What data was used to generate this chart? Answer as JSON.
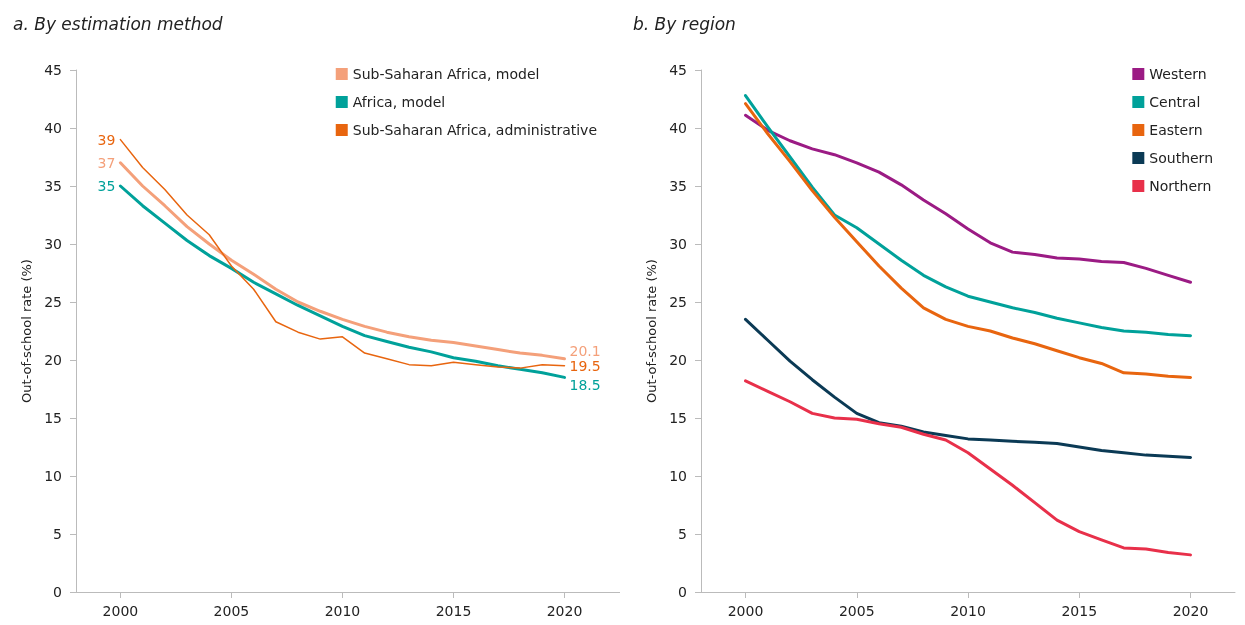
{
  "chart_data": [
    {
      "type": "line",
      "title": "a. By estimation method",
      "ylabel": "Out-of-school rate (%)",
      "x": [
        2000,
        2001,
        2002,
        2003,
        2004,
        2005,
        2006,
        2007,
        2008,
        2009,
        2010,
        2011,
        2012,
        2013,
        2014,
        2015,
        2016,
        2017,
        2018,
        2019,
        2020
      ],
      "xlim": [
        1998,
        2022.5
      ],
      "xticks": [
        2000,
        2005,
        2010,
        2015,
        2020
      ],
      "ylim": [
        0,
        45
      ],
      "yticks": [
        0,
        5,
        10,
        15,
        20,
        25,
        30,
        35,
        40,
        45
      ],
      "grid": false,
      "legend": "top right",
      "marker": "none",
      "line_style": "solid",
      "series": [
        {
          "name": "Sub-Saharan Africa, model",
          "color": "#f4a07a",
          "values": [
            37,
            35.0,
            33.3,
            31.5,
            30.0,
            28.6,
            27.4,
            26.1,
            25.0,
            24.2,
            23.5,
            22.9,
            22.4,
            22.0,
            21.7,
            21.5,
            21.2,
            20.9,
            20.6,
            20.4,
            20.1
          ],
          "value_labels": [
            "37",
            null,
            null,
            null,
            null,
            null,
            null,
            null,
            null,
            null,
            null,
            null,
            null,
            null,
            null,
            null,
            null,
            null,
            null,
            null,
            "20.1"
          ]
        },
        {
          "name": "Africa, model",
          "color": "#00a19a",
          "values": [
            35,
            33.3,
            31.8,
            30.3,
            29.0,
            27.9,
            26.7,
            25.7,
            24.7,
            23.8,
            22.9,
            22.1,
            21.6,
            21.1,
            20.7,
            20.2,
            19.9,
            19.5,
            19.2,
            18.9,
            18.5
          ],
          "value_labels": [
            "35",
            null,
            null,
            null,
            null,
            null,
            null,
            null,
            null,
            null,
            null,
            null,
            null,
            null,
            null,
            null,
            null,
            null,
            null,
            null,
            "18.5"
          ]
        },
        {
          "name": "Sub-Saharan Africa, administrative",
          "color": "#e8650f",
          "values": [
            39,
            36.6,
            34.7,
            32.5,
            30.8,
            28.1,
            26.1,
            23.3,
            22.4,
            21.8,
            22.0,
            20.6,
            20.1,
            19.6,
            19.5,
            19.8,
            19.6,
            19.4,
            19.3,
            19.6,
            19.5
          ],
          "value_labels": [
            "39",
            null,
            null,
            null,
            null,
            null,
            null,
            null,
            null,
            null,
            null,
            null,
            null,
            null,
            null,
            null,
            null,
            null,
            null,
            null,
            "19.5"
          ]
        }
      ]
    },
    {
      "type": "line",
      "title": "b. By region",
      "ylabel": "Out-of-school rate (%)",
      "x": [
        2000,
        2001,
        2002,
        2003,
        2004,
        2005,
        2006,
        2007,
        2008,
        2009,
        2010,
        2011,
        2012,
        2013,
        2014,
        2015,
        2016,
        2017,
        2018,
        2019,
        2020
      ],
      "xlim": [
        1998,
        2022
      ],
      "xticks": [
        2000,
        2005,
        2010,
        2015,
        2020
      ],
      "ylim": [
        0,
        45
      ],
      "yticks": [
        0,
        5,
        10,
        15,
        20,
        25,
        30,
        35,
        40,
        45
      ],
      "grid": false,
      "legend": "top right",
      "marker": "none",
      "line_style": "solid",
      "series": [
        {
          "name": "Western",
          "color": "#9b1b84",
          "values": [
            41.1,
            39.8,
            38.9,
            38.2,
            37.7,
            37.0,
            36.2,
            35.1,
            33.8,
            32.6,
            31.3,
            30.1,
            29.3,
            29.1,
            28.8,
            28.7,
            28.5,
            28.4,
            27.9,
            27.3,
            26.7
          ]
        },
        {
          "name": "Central",
          "color": "#00a19a",
          "values": [
            42.8,
            40.1,
            37.5,
            34.9,
            32.5,
            31.4,
            30.0,
            28.6,
            27.3,
            26.3,
            25.5,
            25.0,
            24.5,
            24.1,
            23.6,
            23.2,
            22.8,
            22.5,
            22.4,
            22.2,
            22.1
          ]
        },
        {
          "name": "Eastern",
          "color": "#e8650f",
          "values": [
            42.1,
            39.5,
            37.1,
            34.6,
            32.3,
            30.2,
            28.1,
            26.2,
            24.5,
            23.5,
            22.9,
            22.5,
            21.9,
            21.4,
            20.8,
            20.2,
            19.7,
            18.9,
            18.8,
            18.6,
            18.5
          ]
        },
        {
          "name": "Southern",
          "color": "#0b3a55",
          "values": [
            23.5,
            21.7,
            19.9,
            18.3,
            16.8,
            15.4,
            14.6,
            14.3,
            13.8,
            13.5,
            13.2,
            13.1,
            13.0,
            12.9,
            12.8,
            12.5,
            12.2,
            12.0,
            11.8,
            11.7,
            11.6
          ]
        },
        {
          "name": "Northern",
          "color": "#e8304a",
          "values": [
            18.2,
            17.3,
            16.4,
            15.4,
            15.0,
            14.9,
            14.5,
            14.2,
            13.6,
            13.1,
            12.0,
            10.6,
            9.2,
            7.7,
            6.2,
            5.2,
            4.5,
            3.8,
            3.7,
            3.4,
            3.2
          ]
        }
      ]
    }
  ]
}
